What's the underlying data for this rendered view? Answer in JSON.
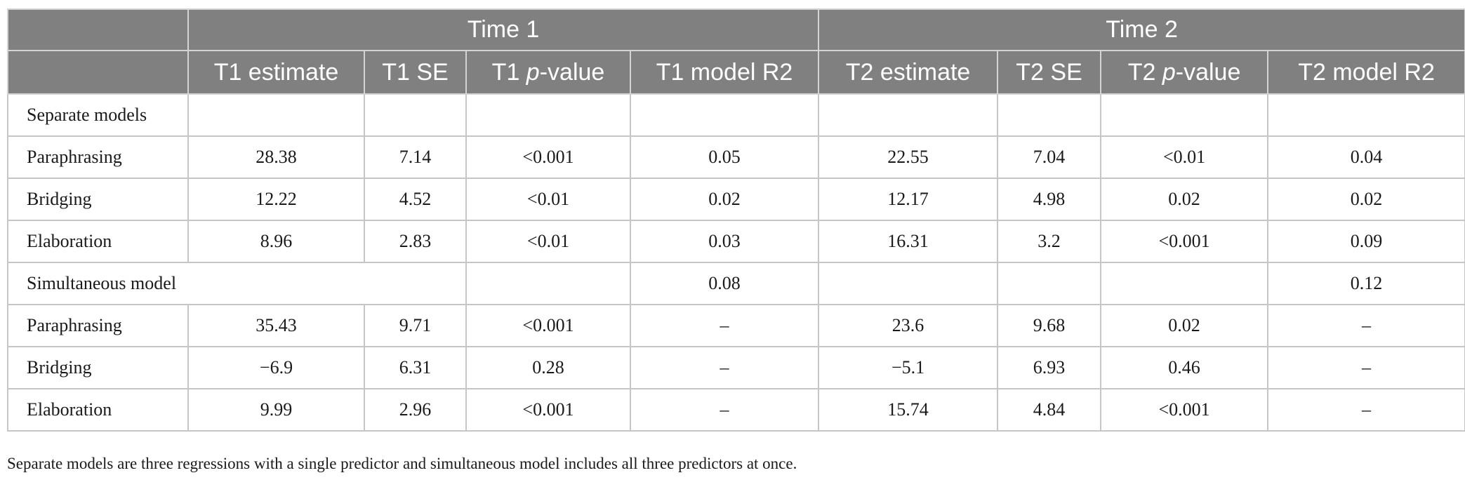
{
  "groups": {
    "time1": "Time 1",
    "time2": "Time 2"
  },
  "columns": {
    "t1_estimate": "T1 estimate",
    "t1_se": "T1 SE",
    "t1_p_prefix": "T1 ",
    "t1_p_letter": "p",
    "t1_p_suffix": "-value",
    "t1_r2": "T1 model R2",
    "t2_estimate": "T2 estimate",
    "t2_se": "T2 SE",
    "t2_p_prefix": "T2 ",
    "t2_p_letter": "p",
    "t2_p_suffix": "-value",
    "t2_r2": "T2 model R2"
  },
  "sections": {
    "separate": "Separate models",
    "simultaneous": "Simultaneous model",
    "simultaneous_t1_r2": "0.08",
    "simultaneous_t2_r2": "0.12"
  },
  "rows": [
    {
      "label": "Paraphrasing",
      "t1_est": "28.38",
      "t1_se": "7.14",
      "t1_p": "<0.001",
      "t1_r2": "0.05",
      "t2_est": "22.55",
      "t2_se": "7.04",
      "t2_p": "<0.01",
      "t2_r2": "0.04"
    },
    {
      "label": "Bridging",
      "t1_est": "12.22",
      "t1_se": "4.52",
      "t1_p": "<0.01",
      "t1_r2": "0.02",
      "t2_est": "12.17",
      "t2_se": "4.98",
      "t2_p": "0.02",
      "t2_r2": "0.02"
    },
    {
      "label": "Elaboration",
      "t1_est": "8.96",
      "t1_se": "2.83",
      "t1_p": "<0.01",
      "t1_r2": "0.03",
      "t2_est": "16.31",
      "t2_se": "3.2",
      "t2_p": "<0.001",
      "t2_r2": "0.09"
    },
    {
      "label": "Paraphrasing",
      "t1_est": "35.43",
      "t1_se": "9.71",
      "t1_p": "<0.001",
      "t1_r2": "–",
      "t2_est": "23.6",
      "t2_se": "9.68",
      "t2_p": "0.02",
      "t2_r2": "–"
    },
    {
      "label": "Bridging",
      "t1_est": "−6.9",
      "t1_se": "6.31",
      "t1_p": "0.28",
      "t1_r2": "–",
      "t2_est": "−5.1",
      "t2_se": "6.93",
      "t2_p": "0.46",
      "t2_r2": "–"
    },
    {
      "label": "Elaboration",
      "t1_est": "9.99",
      "t1_se": "2.96",
      "t1_p": "<0.001",
      "t1_r2": "–",
      "t2_est": "15.74",
      "t2_se": "4.84",
      "t2_p": "<0.001",
      "t2_r2": "–"
    }
  ],
  "footnote": "Separate models are three regressions with a single predictor and simultaneous model includes all three predictors at once."
}
